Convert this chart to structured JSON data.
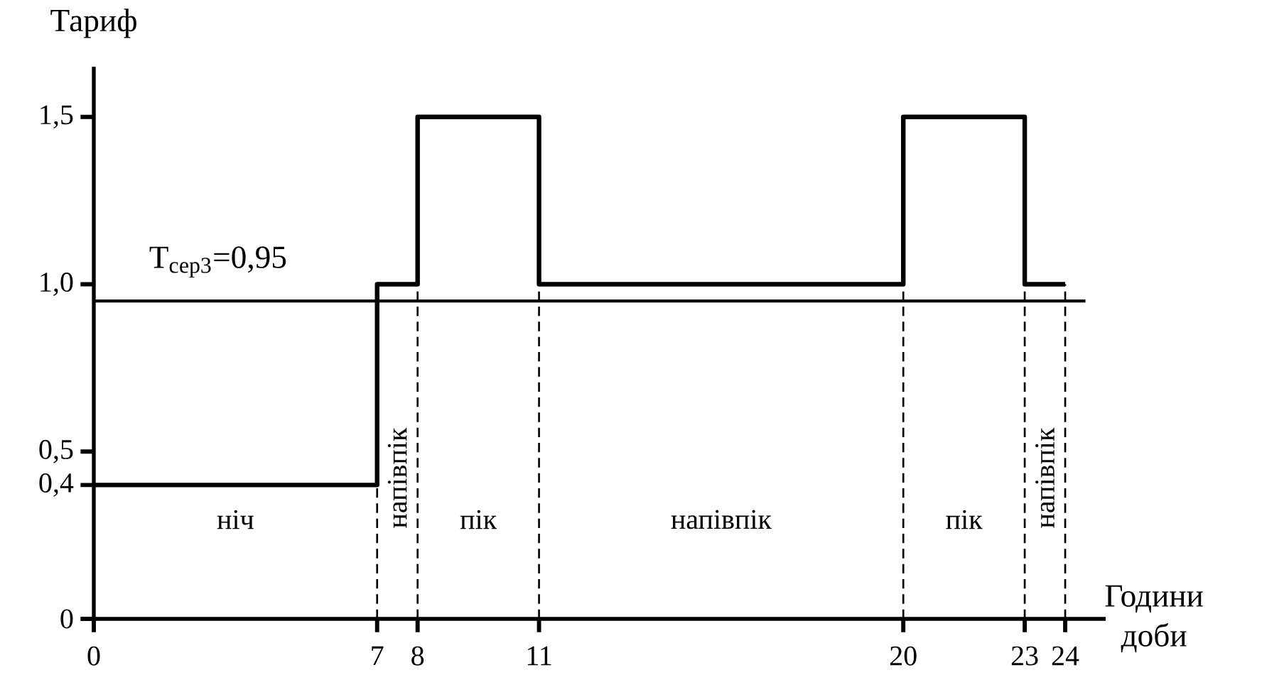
{
  "chart_data": {
    "type": "step",
    "xlabel": "Години доби",
    "ylabel": "Тариф",
    "xlim": [
      0,
      25
    ],
    "ylim": [
      0,
      1.65
    ],
    "xticks": [
      0,
      7,
      8,
      11,
      20,
      23,
      24
    ],
    "yticks": [
      0,
      {
        "value": 0.4,
        "label": "0,4"
      },
      {
        "value": 0.5,
        "label": "0,5"
      },
      {
        "value": 1.0,
        "label": "1,0"
      },
      {
        "value": 1.5,
        "label": "1,5"
      }
    ],
    "series": [
      {
        "x": [
          0,
          7,
          8,
          11,
          20,
          23,
          24
        ],
        "values": [
          0.4,
          1.0,
          1.5,
          1.0,
          1.5,
          1.0,
          1.0
        ],
        "color": "#000000"
      }
    ],
    "ref_lines": [
      {
        "axis": "y",
        "value": 0.95,
        "label": "T$_{сер3}$=0,95",
        "color": "#000000",
        "line_style": "solid"
      },
      {
        "axis": "x",
        "value": 7,
        "line_style": "dashed"
      },
      {
        "axis": "x",
        "value": 8,
        "line_style": "dashed"
      },
      {
        "axis": "x",
        "value": 11,
        "line_style": "dashed"
      },
      {
        "axis": "x",
        "value": 20,
        "line_style": "dashed"
      },
      {
        "axis": "x",
        "value": 23,
        "line_style": "dashed"
      },
      {
        "axis": "x",
        "value": 24,
        "line_style": "dashed"
      }
    ],
    "annotations": [
      "ніч",
      "напівпік",
      "пік",
      "напівпік",
      "пік",
      "напівпік"
    ],
    "grid": false,
    "marker": "none",
    "line_style": "solid"
  }
}
